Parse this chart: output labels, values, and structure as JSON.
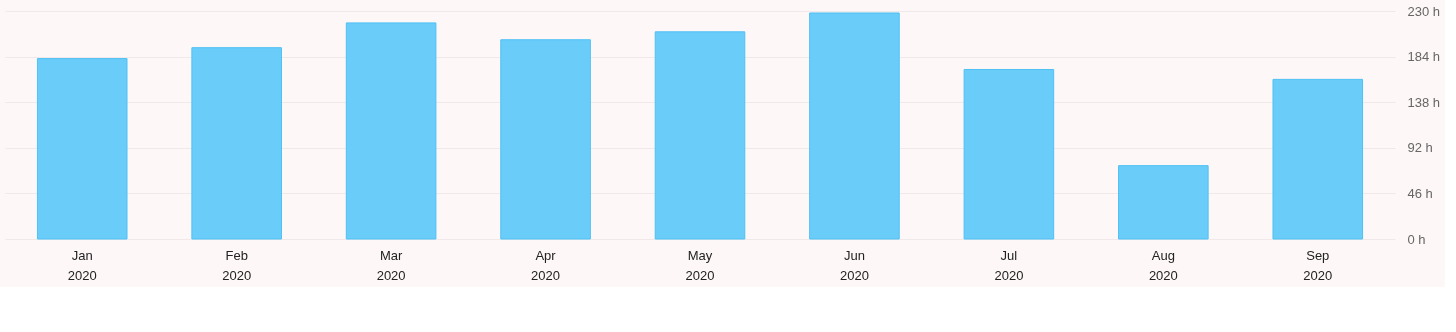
{
  "chart_data": {
    "type": "bar",
    "categories": [
      "Jan 2020",
      "Feb 2020",
      "Mar 2020",
      "Apr 2020",
      "May 2020",
      "Jun 2020",
      "Jul 2020",
      "Aug 2020",
      "Sep 2020"
    ],
    "values": [
      182,
      193,
      218,
      201,
      209,
      228,
      171,
      74,
      161
    ],
    "color": "#6acdf9",
    "ylim": [
      0,
      230
    ],
    "yticks": [
      {
        "value": 0,
        "label": "0 h"
      },
      {
        "value": 46,
        "label": "46 h"
      },
      {
        "value": 92,
        "label": "92 h"
      },
      {
        "value": 138,
        "label": "138 h"
      },
      {
        "value": 184,
        "label": "184 h"
      },
      {
        "value": 230,
        "label": "230 h"
      }
    ],
    "grid": "y"
  }
}
